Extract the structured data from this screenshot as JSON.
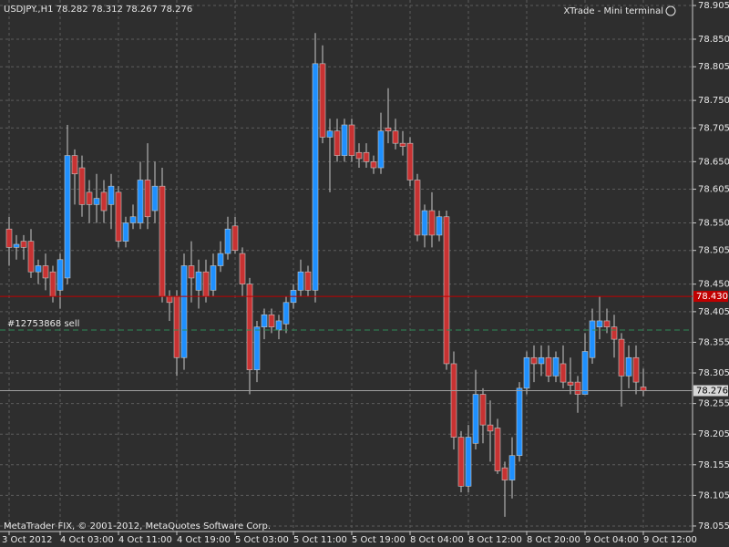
{
  "chart_data": {
    "type": "candlestick",
    "symbol": "USDJPY.,H1",
    "terminal": "XTrade - Mini terminal",
    "footer": "MetaTrader FIX, © 2001-2012, MetaQuotes Software Corp.",
    "bull_color": "#1e90ff",
    "bear_color": "#c83232",
    "wick_color": "#c8c8c8",
    "grid": true,
    "ylim": [
      78.046,
      78.914
    ],
    "yticks": [
      78.905,
      {
        "value": 78.85,
        "label": "78.850"
      },
      78.805,
      {
        "value": 78.75,
        "label": "78.750"
      },
      78.705,
      {
        "value": 78.65,
        "label": "78.650"
      },
      78.605,
      {
        "value": 78.55,
        "label": "78.550"
      },
      78.505,
      {
        "value": 78.45,
        "label": "78.450"
      },
      78.405,
      78.355,
      78.305,
      78.255,
      78.205,
      78.155,
      78.105,
      78.055
    ],
    "categories": [
      "3 Oct 2012",
      null,
      null,
      null,
      null,
      null,
      null,
      "4 Oct 03:00",
      null,
      null,
      null,
      null,
      null,
      null,
      null,
      "4 Oct 11:00",
      null,
      null,
      null,
      null,
      null,
      null,
      null,
      "4 Oct 19:00",
      null,
      null,
      null,
      null,
      null,
      null,
      null,
      "5 Oct 03:00",
      null,
      null,
      null,
      null,
      null,
      null,
      null,
      "5 Oct 11:00",
      null,
      null,
      null,
      null,
      null,
      null,
      null,
      "5 Oct 19:00",
      null,
      null,
      null,
      null,
      null,
      null,
      null,
      "8 Oct 04:00",
      null,
      null,
      null,
      null,
      null,
      null,
      null,
      "8 Oct 12:00",
      null,
      null,
      null,
      null,
      null,
      null,
      null,
      "8 Oct 20:00",
      null,
      null,
      null,
      null,
      null,
      null,
      null,
      "9 Oct 04:00",
      null,
      null,
      null,
      null,
      null,
      null,
      null,
      "9 Oct 12:00"
    ],
    "open": [
      78.54,
      78.51,
      78.52,
      78.52,
      78.47,
      78.48,
      78.47,
      78.44,
      78.46,
      78.66,
      78.64,
      78.6,
      78.58,
      78.6,
      78.58,
      78.6,
      78.52,
      78.55,
      78.55,
      78.62,
      78.57,
      78.61,
      78.43,
      78.43,
      78.33,
      78.48,
      78.44,
      78.47,
      78.44,
      78.48,
      78.5,
      78.545,
      78.5,
      78.45,
      78.31,
      78.38,
      78.4,
      78.375,
      78.385,
      78.42,
      78.44,
      78.47,
      78.44,
      78.81,
      78.69,
      78.7,
      78.66,
      78.71,
      78.665,
      78.665,
      78.65,
      78.64,
      78.705,
      78.7,
      78.68,
      78.68,
      78.62,
      78.53,
      78.57,
      78.53,
      78.56,
      78.32,
      78.2,
      78.12,
      78.19,
      78.27,
      78.22,
      78.215,
      78.15,
      78.13,
      78.17,
      78.28,
      78.33,
      78.32,
      78.33,
      78.3,
      78.32,
      78.29,
      78.29,
      78.27,
      78.33,
      78.38,
      78.39,
      78.38,
      78.36,
      78.3,
      78.33,
      78.282
    ],
    "high": [
      78.56,
      78.53,
      78.53,
      78.54,
      78.49,
      78.5,
      78.48,
      78.5,
      78.71,
      78.67,
      78.66,
      78.62,
      78.63,
      78.62,
      78.63,
      78.61,
      78.56,
      78.58,
      78.65,
      78.68,
      78.65,
      78.64,
      78.44,
      78.44,
      78.5,
      78.52,
      78.49,
      78.49,
      78.5,
      78.52,
      78.56,
      78.56,
      78.51,
      78.46,
      78.39,
      78.41,
      78.41,
      78.4,
      78.43,
      78.45,
      78.49,
      78.48,
      78.86,
      78.84,
      78.72,
      78.72,
      78.72,
      78.72,
      78.68,
      78.68,
      78.66,
      78.73,
      78.77,
      78.72,
      78.7,
      78.69,
      78.63,
      78.58,
      78.6,
      78.57,
      78.57,
      78.34,
      78.21,
      78.22,
      78.31,
      78.28,
      78.26,
      78.23,
      78.16,
      78.2,
      78.29,
      78.34,
      78.35,
      78.35,
      78.35,
      78.34,
      78.35,
      78.33,
      78.3,
      78.37,
      78.41,
      78.43,
      78.41,
      78.4,
      78.37,
      78.35,
      78.35,
      78.312
    ],
    "low": [
      78.48,
      78.49,
      78.49,
      78.46,
      78.45,
      78.44,
      78.42,
      78.41,
      78.45,
      78.58,
      78.56,
      78.55,
      78.55,
      78.55,
      78.54,
      78.51,
      78.51,
      78.54,
      78.54,
      78.54,
      78.55,
      78.42,
      78.39,
      78.3,
      78.31,
      78.42,
      78.41,
      78.42,
      78.43,
      78.47,
      78.49,
      78.5,
      78.43,
      78.27,
      78.29,
      78.36,
      78.37,
      78.36,
      78.37,
      78.41,
      78.43,
      78.43,
      78.42,
      78.68,
      78.6,
      78.65,
      78.65,
      78.65,
      78.64,
      78.64,
      78.63,
      78.63,
      78.68,
      78.67,
      78.66,
      78.61,
      78.52,
      78.51,
      78.51,
      78.52,
      78.31,
      78.18,
      78.11,
      78.11,
      78.18,
      78.19,
      78.16,
      78.14,
      78.07,
      78.1,
      78.16,
      78.27,
      78.29,
      78.3,
      78.29,
      78.29,
      78.28,
      78.27,
      78.24,
      78.27,
      78.32,
      78.36,
      78.37,
      78.33,
      78.25,
      78.28,
      78.27,
      78.267
    ],
    "close": [
      78.51,
      78.515,
      78.51,
      78.47,
      78.48,
      78.46,
      78.43,
      78.49,
      78.66,
      78.63,
      78.58,
      78.58,
      78.59,
      78.57,
      78.61,
      78.52,
      78.55,
      78.56,
      78.62,
      78.56,
      78.61,
      78.43,
      78.42,
      78.33,
      78.48,
      78.46,
      78.47,
      78.43,
      78.48,
      78.5,
      78.54,
      78.505,
      78.45,
      78.31,
      78.38,
      78.4,
      78.38,
      78.39,
      78.42,
      78.44,
      78.47,
      78.44,
      78.81,
      78.69,
      78.7,
      78.66,
      78.71,
      78.66,
      78.655,
      78.65,
      78.64,
      78.7,
      78.7,
      78.68,
      78.675,
      78.62,
      78.53,
      78.57,
      78.53,
      78.56,
      78.32,
      78.2,
      78.12,
      78.2,
      78.27,
      78.22,
      78.21,
      78.145,
      78.13,
      78.17,
      78.28,
      78.33,
      78.32,
      78.33,
      78.3,
      78.33,
      78.29,
      78.285,
      78.27,
      78.34,
      78.39,
      78.39,
      78.38,
      78.36,
      78.3,
      78.33,
      78.29,
      78.276
    ],
    "level_line": {
      "value": 78.43,
      "label": "78.430",
      "color": "#c00000"
    },
    "order_line": {
      "value": 78.375,
      "text": "#12753868 sell",
      "color": "#2e8b57"
    },
    "bid_line_color": "#a0a0a0"
  }
}
